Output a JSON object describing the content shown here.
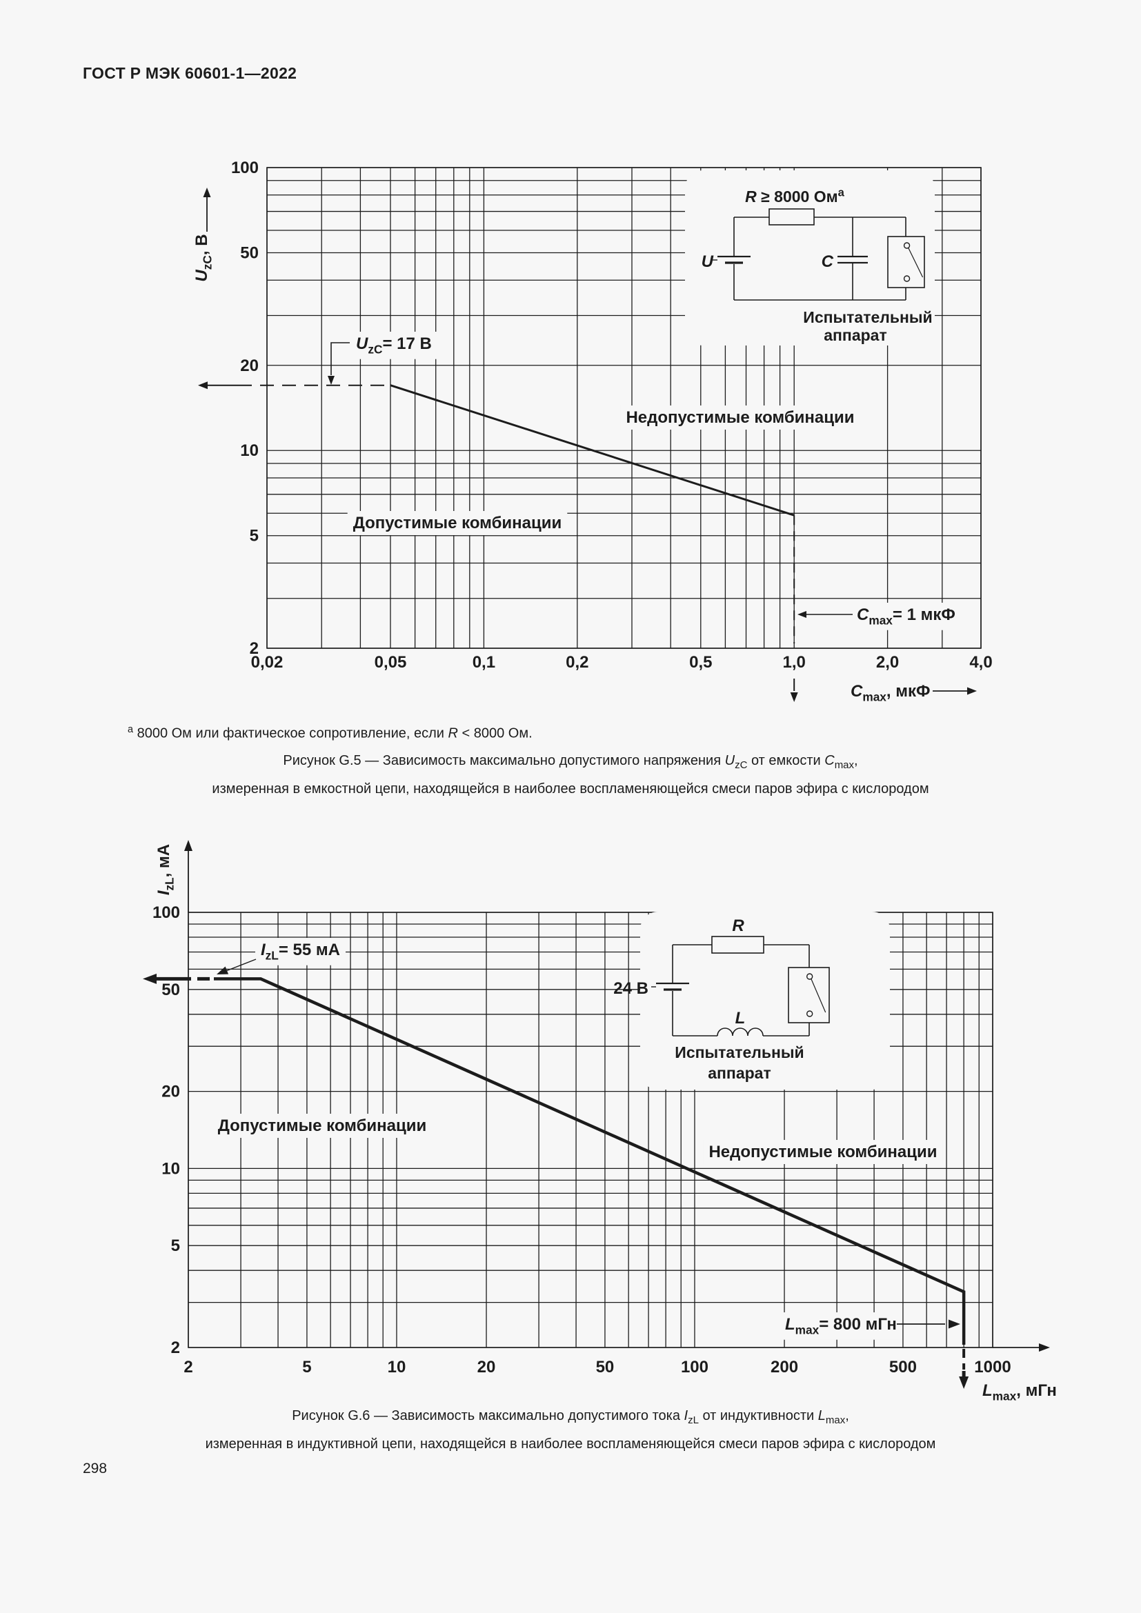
{
  "page": {
    "header": "ГОСТ Р МЭК 60601-1—2022",
    "page_number": "298",
    "background": "#f7f7f7",
    "line_color": "#1c1c1c"
  },
  "chart_data": [
    {
      "type": "line",
      "figure_id": "G.5",
      "xscale": "log",
      "yscale": "log",
      "xlim": [
        0.02,
        4
      ],
      "ylim": [
        2,
        100
      ],
      "grid": "log-major-minor",
      "legend_position": "none",
      "xticks": [
        {
          "v": 0.02,
          "label": "0,02"
        },
        {
          "v": 0.05,
          "label": "0,05"
        },
        {
          "v": 0.1,
          "label": "0,1"
        },
        {
          "v": 0.2,
          "label": "0,2"
        },
        {
          "v": 0.5,
          "label": "0,5"
        },
        {
          "v": 1,
          "label": "1,0"
        },
        {
          "v": 2,
          "label": "2,0"
        },
        {
          "v": 4,
          "label": "4,0"
        }
      ],
      "yticks": [
        {
          "v": 2,
          "label": "2"
        },
        {
          "v": 5,
          "label": "5"
        },
        {
          "v": 10,
          "label": "10"
        },
        {
          "v": 20,
          "label": "20"
        },
        {
          "v": 50,
          "label": "50"
        },
        {
          "v": 100,
          "label": "100"
        }
      ],
      "xlabel_parts": [
        {
          "t": "C",
          "italic": true
        },
        {
          "t": "max",
          "sub": true
        },
        {
          "t": ", мкФ"
        }
      ],
      "ylabel_parts": [
        {
          "t": "U",
          "italic": true
        },
        {
          "t": "zC",
          "sub": true
        },
        {
          "t": ", В"
        }
      ],
      "series": [
        {
          "name": "ignition-limit",
          "points": [
            [
              0.02,
              17
            ],
            [
              0.05,
              17
            ],
            [
              1.0,
              5.9
            ]
          ]
        }
      ],
      "limits": {
        "flat_value": 17,
        "flat_until_x": 0.05,
        "max_x": 1.0,
        "end_y": 5.9
      },
      "annotations": {
        "flat_callout_parts": [
          {
            "t": "U",
            "italic": true
          },
          {
            "t": "zC",
            "sub": true
          },
          {
            "t": "= 17 В"
          }
        ],
        "max_callout_parts": [
          {
            "t": "C",
            "italic": true
          },
          {
            "t": "max",
            "sub": true
          },
          {
            "t": "= 1 мкФ"
          }
        ],
        "allowed_label": "Допустимые комбинации",
        "not_allowed_label": "Недопустимые комбинации"
      },
      "inset": {
        "resistor_label_parts": [
          {
            "t": "R",
            "italic": true
          },
          {
            "t": " ≥ 8000 Ом"
          },
          {
            "t": "a",
            "sup": true
          }
        ],
        "source_label_parts": [
          {
            "t": "U",
            "italic": true
          }
        ],
        "capacitor_label_parts": [
          {
            "t": "C",
            "italic": true
          }
        ],
        "apparatus_lines": [
          "Испытательный",
          "аппарат"
        ]
      }
    },
    {
      "type": "line",
      "figure_id": "G.6",
      "xscale": "log",
      "yscale": "log",
      "xlim": [
        2,
        1000
      ],
      "ylim": [
        2,
        100
      ],
      "grid": "log-major-minor",
      "legend_position": "none",
      "xticks": [
        {
          "v": 2,
          "label": "2"
        },
        {
          "v": 5,
          "label": "5"
        },
        {
          "v": 10,
          "label": "10"
        },
        {
          "v": 20,
          "label": "20"
        },
        {
          "v": 50,
          "label": "50"
        },
        {
          "v": 100,
          "label": "100"
        },
        {
          "v": 200,
          "label": "200"
        },
        {
          "v": 500,
          "label": "500"
        },
        {
          "v": 1000,
          "label": "1000"
        }
      ],
      "yticks": [
        {
          "v": 2,
          "label": "2"
        },
        {
          "v": 5,
          "label": "5"
        },
        {
          "v": 10,
          "label": "10"
        },
        {
          "v": 20,
          "label": "20"
        },
        {
          "v": 50,
          "label": "50"
        },
        {
          "v": 100,
          "label": "100"
        }
      ],
      "xlabel_parts": [
        {
          "t": "L",
          "italic": true
        },
        {
          "t": "max",
          "sub": true
        },
        {
          "t": ", мГн"
        }
      ],
      "ylabel_parts": [
        {
          "t": "I",
          "italic": true
        },
        {
          "t": "zL",
          "sub": true
        },
        {
          "t": ", мА"
        }
      ],
      "series": [
        {
          "name": "ignition-limit",
          "points": [
            [
              2,
              55
            ],
            [
              3.5,
              55
            ],
            [
              800,
              3.3
            ]
          ]
        }
      ],
      "limits": {
        "flat_value": 55,
        "flat_until_x": 3.5,
        "max_x": 800,
        "end_y": 3.3
      },
      "annotations": {
        "flat_callout_parts": [
          {
            "t": "I",
            "italic": true
          },
          {
            "t": "zL",
            "sub": true
          },
          {
            "t": "= 55 мА"
          }
        ],
        "max_callout_parts": [
          {
            "t": "L",
            "italic": true
          },
          {
            "t": "max",
            "sub": true
          },
          {
            "t": "= 800 мГн"
          }
        ],
        "allowed_label": "Допустимые комбинации",
        "not_allowed_label": "Недопустимые комбинации"
      },
      "inset": {
        "resistor_label_parts": [
          {
            "t": "R",
            "italic": true
          }
        ],
        "source_label_parts": [
          {
            "t": "24 В"
          }
        ],
        "inductor_label_parts": [
          {
            "t": "L",
            "italic": true
          }
        ],
        "apparatus_lines": [
          "Испытательный",
          "аппарат"
        ]
      }
    }
  ],
  "figure_g5": {
    "footnote_parts": [
      {
        "t": "a",
        "sup": true
      },
      {
        "t": " 8000 Ом или фактическое сопротивление, если "
      },
      {
        "t": "R",
        "italic": true
      },
      {
        "t": " < 8000 Ом."
      }
    ],
    "caption_line1_parts": [
      {
        "t": "Рисунок G.5 — Зависимость максимально допустимого напряжения "
      },
      {
        "t": "U",
        "italic": true
      },
      {
        "t": "zC",
        "sub": true
      },
      {
        "t": " от емкости "
      },
      {
        "t": "C",
        "italic": true
      },
      {
        "t": "max",
        "sub": true
      },
      {
        "t": ","
      }
    ],
    "caption_line2": "измеренная в емкостной цепи, находящейся в наиболее воспламеняющейся смеси паров эфира с кислородом"
  },
  "figure_g6": {
    "caption_line1_parts": [
      {
        "t": "Рисунок G.6 — Зависимость максимально допустимого тока "
      },
      {
        "t": "I",
        "italic": true
      },
      {
        "t": "zL",
        "sub": true
      },
      {
        "t": " от индуктивности "
      },
      {
        "t": "L",
        "italic": true
      },
      {
        "t": "max",
        "sub": true
      },
      {
        "t": ","
      }
    ],
    "caption_line2": "измеренная в индуктивной цепи, находящейся в наиболее воспламеняющейся смеси паров эфира с кислородом"
  }
}
